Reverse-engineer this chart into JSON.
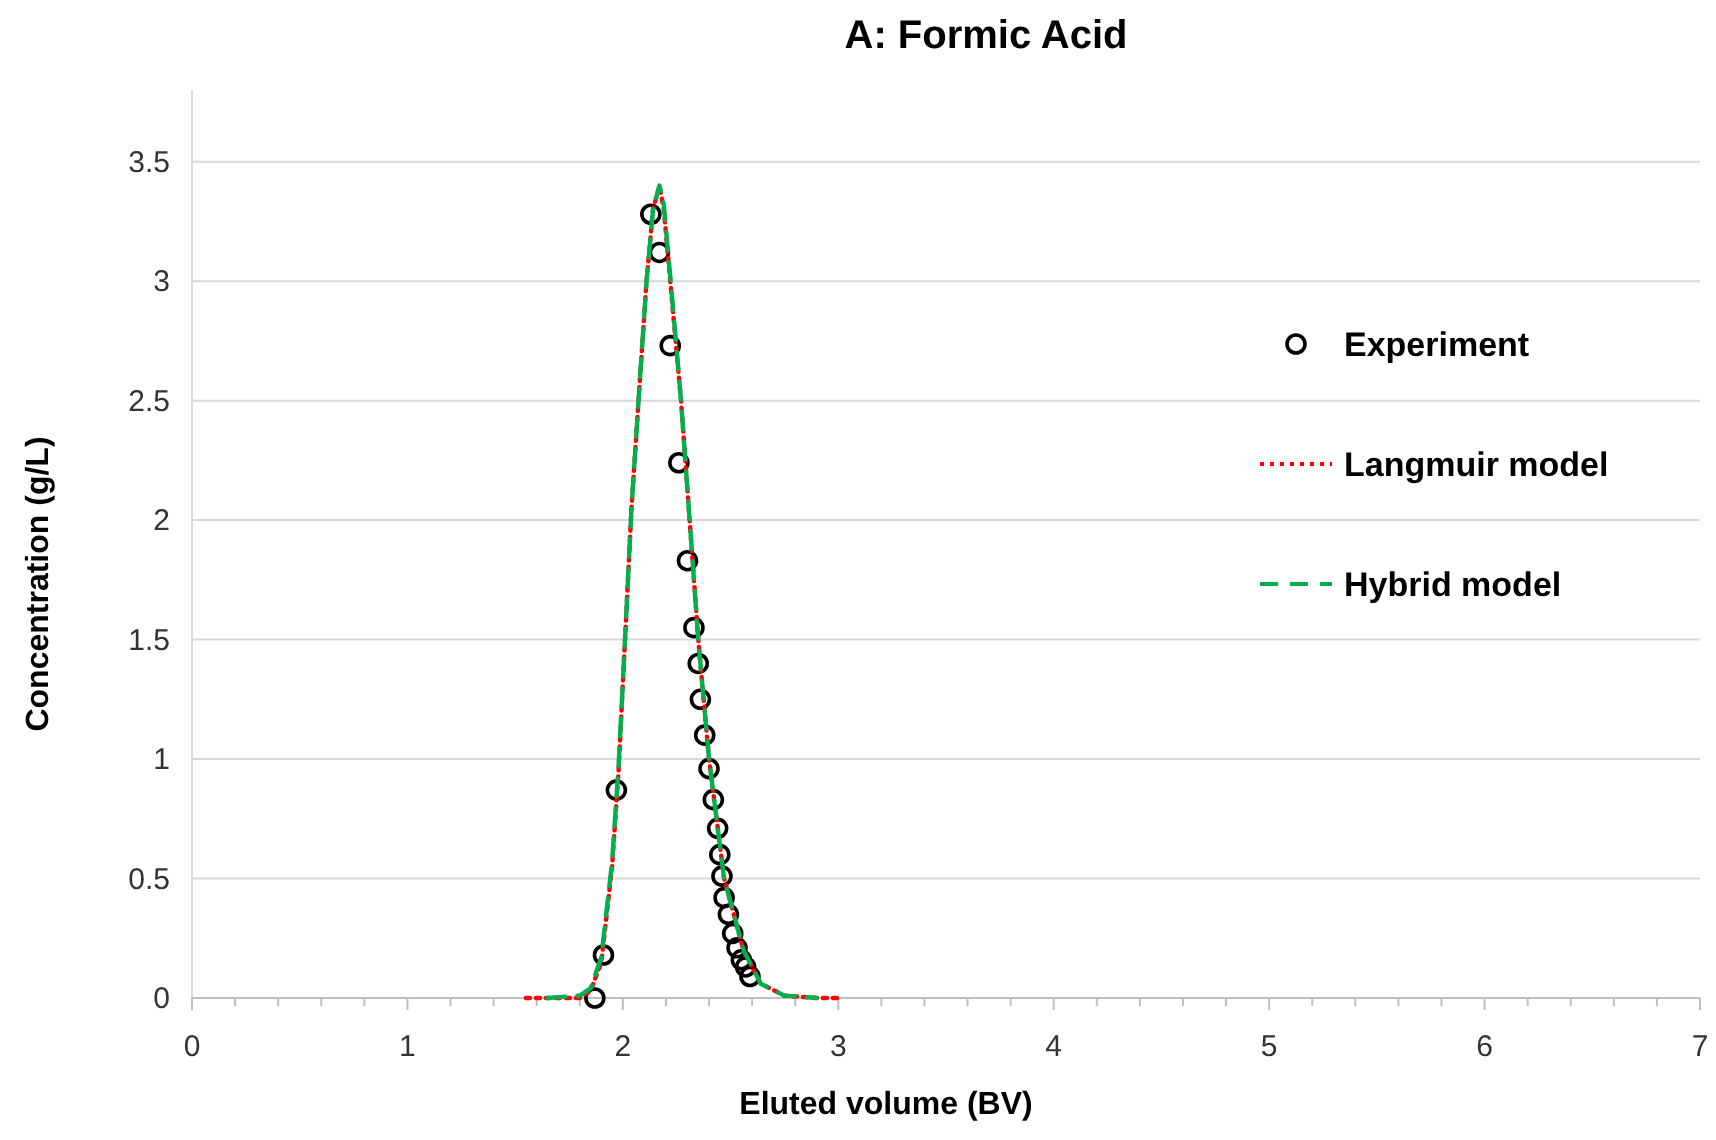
{
  "chart_data": {
    "type": "line",
    "title": "A: Formic Acid",
    "xlabel": "Eluted volume (BV)",
    "ylabel": "Concentration (g/L)",
    "xlim": [
      0,
      7
    ],
    "xticks": [
      0,
      {
        "value": 0.2,
        "label": null
      },
      {
        "value": 0.4,
        "label": null
      },
      {
        "value": 0.6,
        "label": null
      },
      {
        "value": 0.8,
        "label": null
      },
      1,
      {
        "value": 1.2,
        "label": null
      },
      {
        "value": 1.4,
        "label": null
      },
      {
        "value": 1.6,
        "label": null
      },
      {
        "value": 1.8,
        "label": null
      },
      2,
      {
        "value": 2.2,
        "label": null
      },
      {
        "value": 2.4,
        "label": null
      },
      {
        "value": 2.6,
        "label": null
      },
      {
        "value": 2.8,
        "label": null
      },
      3,
      {
        "value": 3.2,
        "label": null
      },
      {
        "value": 3.4,
        "label": null
      },
      {
        "value": 3.6,
        "label": null
      },
      {
        "value": 3.8,
        "label": null
      },
      4,
      {
        "value": 4.2,
        "label": null
      },
      {
        "value": 4.4,
        "label": null
      },
      {
        "value": 4.6,
        "label": null
      },
      {
        "value": 4.8,
        "label": null
      },
      5,
      {
        "value": 5.2,
        "label": null
      },
      {
        "value": 5.4,
        "label": null
      },
      {
        "value": 5.6,
        "label": null
      },
      {
        "value": 5.8,
        "label": null
      },
      6,
      {
        "value": 6.2,
        "label": null
      },
      {
        "value": 6.4,
        "label": null
      },
      {
        "value": 6.6,
        "label": null
      },
      {
        "value": 6.8,
        "label": null
      },
      7
    ],
    "ylim": [
      0,
      3.8
    ],
    "yticks": [
      0,
      0.5,
      1,
      1.5,
      2,
      2.5,
      3,
      3.5
    ],
    "grid": "y",
    "legend": "right",
    "series": [
      {
        "name": "Experiment",
        "type": "scatter",
        "marker": "circle",
        "color": "#000000",
        "x": [
          1.87,
          1.91,
          1.97,
          2.13,
          2.17,
          2.22,
          2.26,
          2.3,
          2.33,
          2.35,
          2.36,
          2.38,
          2.4,
          2.42,
          2.44,
          2.45,
          2.46,
          2.47,
          2.49,
          2.51,
          2.53,
          2.55,
          2.57,
          2.59
        ],
        "values": [
          0,
          0.18,
          0.87,
          3.28,
          3.12,
          2.73,
          2.24,
          1.83,
          1.55,
          1.4,
          1.25,
          1.1,
          0.96,
          0.83,
          0.71,
          0.6,
          0.51,
          0.42,
          0.35,
          0.27,
          0.21,
          0.16,
          0.13,
          0.09
        ]
      },
      {
        "name": "Langmuir model",
        "line_style": "dotted",
        "color": "#ff0000",
        "x": [
          1.55,
          1.8,
          1.85,
          1.9,
          1.95,
          1.98,
          2.01,
          2.04,
          2.08,
          2.11,
          2.14,
          2.17,
          2.19,
          2.22,
          2.27,
          2.31,
          2.35,
          2.4,
          2.47,
          2.56,
          2.64,
          2.75,
          2.9,
          3.0
        ],
        "values": [
          0,
          0,
          0.03,
          0.15,
          0.55,
          0.95,
          1.5,
          2.05,
          2.6,
          3.0,
          3.3,
          3.4,
          3.3,
          3.0,
          2.5,
          2.0,
          1.5,
          1.0,
          0.5,
          0.2,
          0.06,
          0.01,
          0,
          0
        ]
      },
      {
        "name": "Hybrid model",
        "line_style": "dashed",
        "color": "#00b050",
        "x": [
          1.65,
          1.8,
          1.85,
          1.9,
          1.95,
          1.98,
          2.01,
          2.04,
          2.08,
          2.11,
          2.14,
          2.17,
          2.19,
          2.22,
          2.27,
          2.31,
          2.35,
          2.4,
          2.47,
          2.56,
          2.64,
          2.75,
          2.9
        ],
        "values": [
          0,
          0.01,
          0.04,
          0.17,
          0.57,
          0.97,
          1.5,
          2.05,
          2.6,
          3.0,
          3.3,
          3.4,
          3.32,
          3.02,
          2.5,
          2.0,
          1.5,
          1.0,
          0.5,
          0.2,
          0.06,
          0.01,
          0
        ]
      }
    ]
  }
}
